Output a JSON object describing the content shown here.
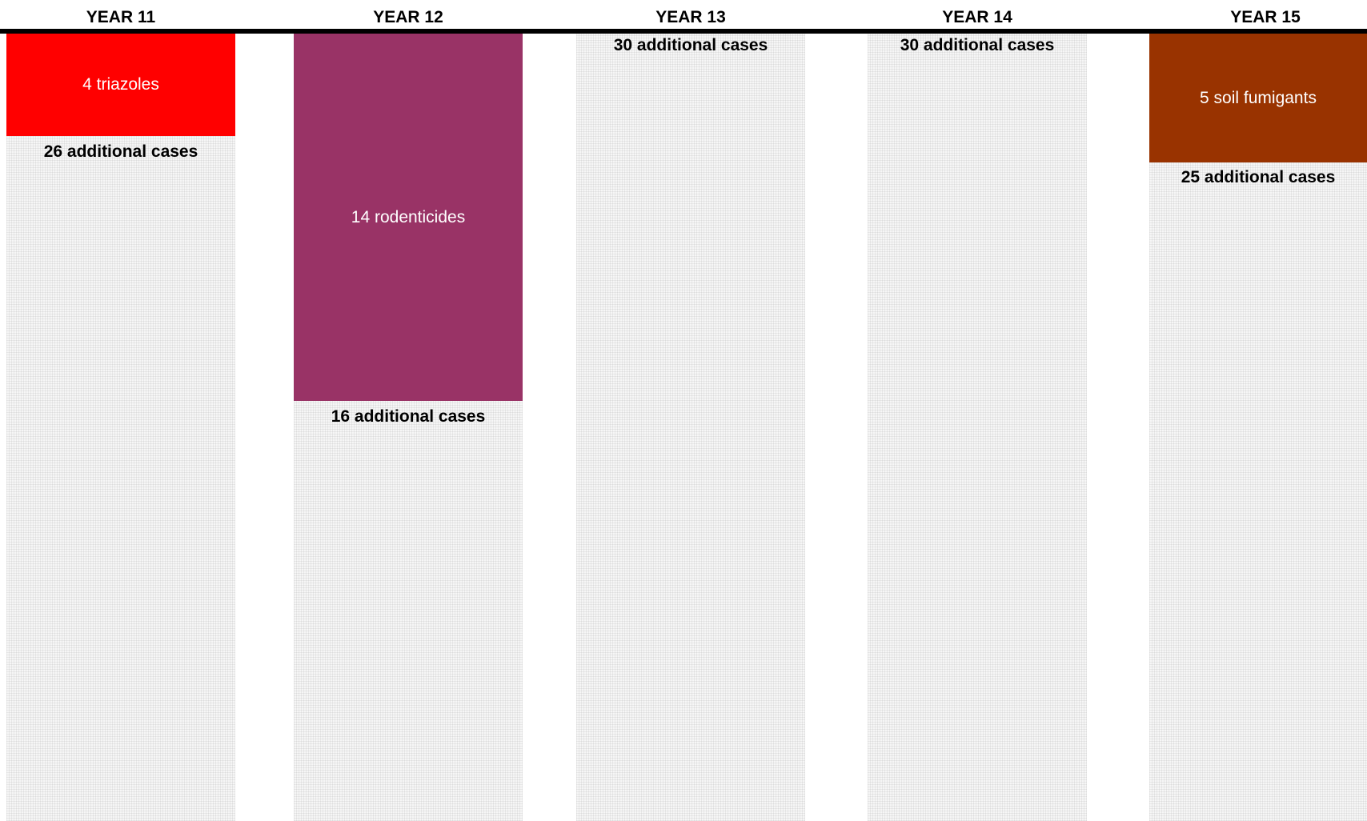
{
  "columns": [
    {
      "year_label": "YEAR 11",
      "block_label": "4 triazoles",
      "block_color": "#ff0000",
      "cases_label": "26 additional cases"
    },
    {
      "year_label": "YEAR 12",
      "block_label": "14 rodenticides",
      "block_color": "#993366",
      "cases_label": "16 additional cases"
    },
    {
      "year_label": "YEAR 13",
      "block_label": "",
      "block_color": "",
      "cases_label": "30 additional cases"
    },
    {
      "year_label": "YEAR 14",
      "block_label": "",
      "block_color": "",
      "cases_label": "30 additional cases"
    },
    {
      "year_label": "YEAR 15",
      "block_label": "5 soil fumigants",
      "block_color": "#993300",
      "cases_label": "25 additional cases"
    }
  ]
}
